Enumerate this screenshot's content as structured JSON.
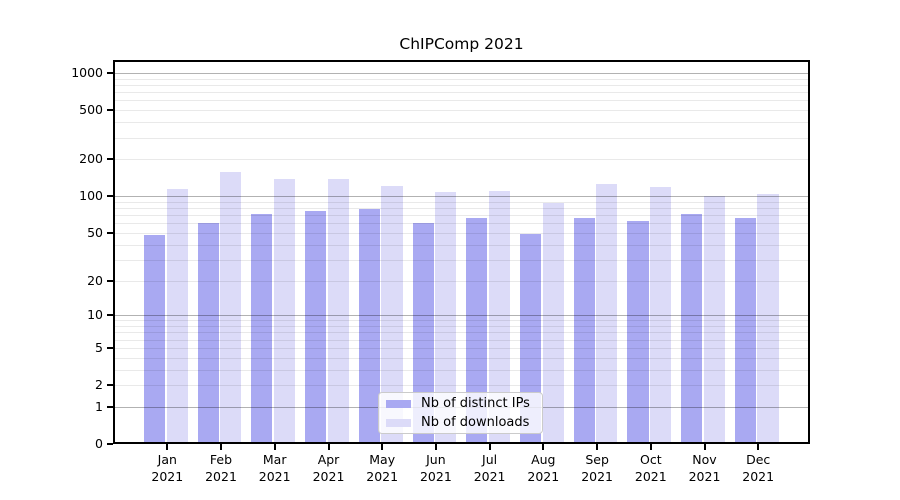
{
  "title": "ChIPComp 2021",
  "chart_data": {
    "type": "bar",
    "title": "ChIPComp 2021",
    "x_categories": [
      "Jan 2021",
      "Feb 2021",
      "Mar 2021",
      "Apr 2021",
      "May 2021",
      "Jun 2021",
      "Jul 2021",
      "Aug 2021",
      "Sep 2021",
      "Oct 2021",
      "Nov 2021",
      "Dec 2021"
    ],
    "months": [
      "Jan",
      "Feb",
      "Mar",
      "Apr",
      "May",
      "Jun",
      "Jul",
      "Aug",
      "Sep",
      "Oct",
      "Nov",
      "Dec"
    ],
    "year_label": "2021",
    "series": [
      {
        "name": "Nb of distinct IPs",
        "color": "#a9a9f2",
        "values": [
          48,
          60,
          71,
          75,
          78,
          60,
          66,
          49,
          66,
          63,
          72,
          66
        ]
      },
      {
        "name": "Nb of downloads",
        "color": "#dcdbf8",
        "values": [
          115,
          158,
          138,
          138,
          121,
          108,
          110,
          88,
          125,
          119,
          100,
          104
        ]
      }
    ],
    "y_scale": "log10(1+x)",
    "ylim": [
      0,
      1000
    ],
    "y_ticks": [
      {
        "v": 0,
        "label": "0"
      },
      {
        "v": 1,
        "label": "1"
      },
      {
        "v": 2,
        "label": "2"
      },
      {
        "v": 5,
        "label": "5"
      },
      {
        "v": 10,
        "label": "10"
      },
      {
        "v": 20,
        "label": "20"
      },
      {
        "v": 50,
        "label": "50"
      },
      {
        "v": 100,
        "label": "100"
      },
      {
        "v": 200,
        "label": "200"
      },
      {
        "v": 500,
        "label": "500"
      },
      {
        "v": 1000,
        "label": "1000"
      }
    ],
    "grid": true,
    "legend_position": "lower center"
  }
}
